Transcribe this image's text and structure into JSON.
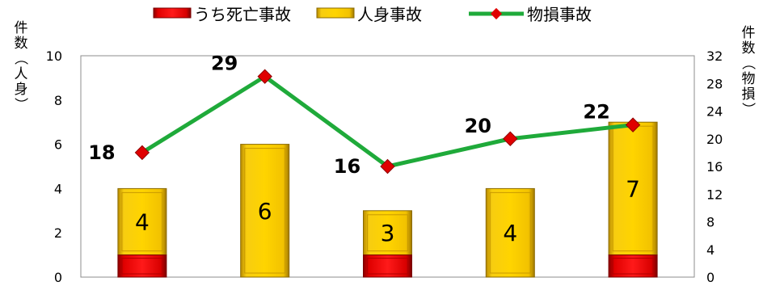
{
  "chart_data": {
    "type": "bar",
    "categories": [
      "",
      "",
      "",
      "",
      ""
    ],
    "series": [
      {
        "name": "うち死亡事故",
        "values": [
          1,
          0,
          1,
          0,
          1
        ],
        "color": "#e00000",
        "axis": "left",
        "kind": "bar"
      },
      {
        "name": "人身事故",
        "values": [
          4,
          6,
          3,
          4,
          7
        ],
        "color": "#f5c400",
        "axis": "left",
        "kind": "bar"
      },
      {
        "name": "物損事故",
        "values": [
          18,
          29,
          16,
          20,
          22
        ],
        "color": "#1faa3a",
        "marker_color": "#e00000",
        "axis": "right",
        "kind": "line"
      }
    ],
    "bar_labels": [
      "4",
      "6",
      "3",
      "4",
      "7"
    ],
    "line_labels": [
      "18",
      "29",
      "16",
      "20",
      "22"
    ],
    "ylabel": "件数（人身）",
    "ylabel_right": "件数（物損）",
    "ylim": [
      0,
      10
    ],
    "y_ticks": [
      "0",
      "2",
      "4",
      "6",
      "8",
      "10"
    ],
    "ylim_right": [
      0,
      32
    ],
    "y_ticks_right": [
      "0",
      "4",
      "8",
      "12",
      "16",
      "20",
      "24",
      "28",
      "32"
    ],
    "legend_position": "top",
    "grid": false
  }
}
